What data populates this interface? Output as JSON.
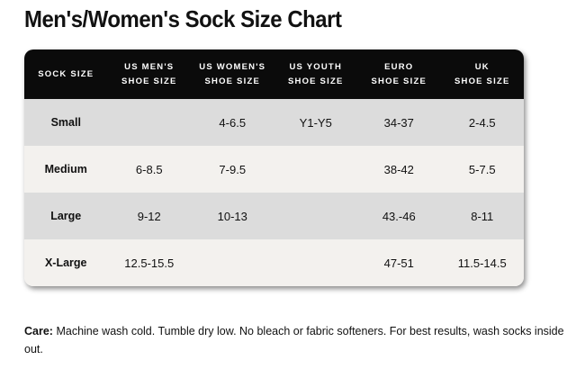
{
  "title": "Men's/Women's Sock Size Chart",
  "table": {
    "headers": [
      [
        "SOCK SIZE"
      ],
      [
        "US MEN'S",
        "SHOE SIZE"
      ],
      [
        "US WOMEN'S",
        "SHOE SIZE"
      ],
      [
        "US YOUTH",
        "SHOE SIZE"
      ],
      [
        "EURO",
        "SHOE SIZE"
      ],
      [
        "UK",
        "SHOE SIZE"
      ]
    ],
    "rows": [
      [
        "Small",
        null,
        "4-6.5",
        "Y1-Y5",
        "34-37",
        "2-4.5"
      ],
      [
        "Medium",
        "6-8.5",
        "7-9.5",
        null,
        "38-42",
        "5-7.5"
      ],
      [
        "Large",
        "9-12",
        "10-13",
        null,
        "43.-46",
        "8-11"
      ],
      [
        "X-Large",
        "12.5-15.5",
        null,
        null,
        "47-51",
        "11.5-14.5"
      ]
    ]
  },
  "care": {
    "label": "Care:",
    "text": "Machine wash cold. Tumble dry low. No bleach or fabric softeners. For best results, wash socks inside out."
  }
}
